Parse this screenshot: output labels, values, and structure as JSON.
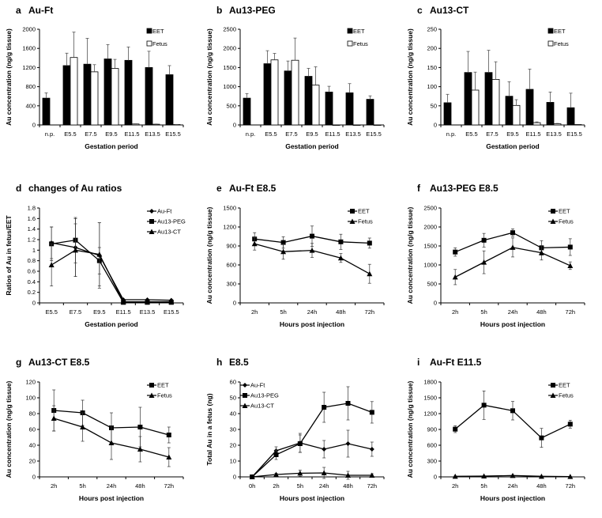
{
  "chart_data": [
    {
      "id": "a",
      "type": "bar",
      "letter": "a",
      "title": "Au-Ft",
      "xlabel": "Gestation period",
      "ylabel": "Au concentration (ng/g tissue)",
      "ylim": [
        0,
        2000
      ],
      "yticks": [
        "0",
        "400",
        "800",
        "1200",
        "1600",
        "2000"
      ],
      "legend_position": "top-right",
      "categories": [
        "n.p.",
        "E5.5",
        "E7.5",
        "E9.5",
        "E11.5",
        "E13.5",
        "E15.5"
      ],
      "series": [
        {
          "name": "EET",
          "fill": "#000000",
          "values": [
            560,
            1240,
            1270,
            1380,
            1350,
            1200,
            1050
          ],
          "errors": [
            110,
            260,
            540,
            300,
            280,
            340,
            190
          ]
        },
        {
          "name": "Fetus",
          "fill": "#ffffff",
          "values": [
            null,
            1410,
            1110,
            1180,
            20,
            15,
            8
          ],
          "errors": [
            null,
            530,
            150,
            190,
            5,
            5,
            3
          ]
        }
      ]
    },
    {
      "id": "b",
      "type": "bar",
      "letter": "b",
      "title": "Au13-PEG",
      "xlabel": "Gestation period",
      "ylabel": "Au concentration (ng/g tissue)",
      "ylim": [
        0,
        2500
      ],
      "yticks": [
        "0",
        "500",
        "1000",
        "1500",
        "2000",
        "2500"
      ],
      "legend_position": "top-right",
      "categories": [
        "n.p.",
        "E5.5",
        "E7.5",
        "E9.5",
        "E11.5",
        "E13.5",
        "E15.5"
      ],
      "series": [
        {
          "name": "EET",
          "fill": "#000000",
          "values": [
            700,
            1600,
            1410,
            1270,
            860,
            840,
            670
          ],
          "errors": [
            120,
            340,
            260,
            210,
            150,
            240,
            90
          ]
        },
        {
          "name": "Fetus",
          "fill": "#ffffff",
          "values": [
            null,
            1700,
            1690,
            1040,
            0,
            0,
            0
          ],
          "errors": [
            null,
            170,
            580,
            480,
            0,
            0,
            0
          ]
        }
      ]
    },
    {
      "id": "c",
      "type": "bar",
      "letter": "c",
      "title": "Au13-CT",
      "xlabel": "Gestation period",
      "ylabel": "Au concentration (ng/g tissue)",
      "ylim": [
        0,
        250
      ],
      "yticks": [
        "0",
        "50",
        "100",
        "150",
        "200",
        "250"
      ],
      "legend_position": "top-right",
      "categories": [
        "n.p.",
        "E5.5",
        "E7.5",
        "E9.5",
        "E11.5",
        "E13.5",
        "E15.5"
      ],
      "series": [
        {
          "name": "EET",
          "fill": "#000000",
          "values": [
            58,
            137,
            137,
            75,
            93,
            59,
            45
          ],
          "errors": [
            22,
            55,
            58,
            38,
            53,
            27,
            38
          ]
        },
        {
          "name": "Fetus",
          "fill": "#ffffff",
          "values": [
            null,
            91,
            119,
            51,
            6,
            3,
            1
          ],
          "errors": [
            null,
            47,
            46,
            15,
            2,
            1,
            0
          ]
        }
      ]
    },
    {
      "id": "d",
      "type": "line",
      "letter": "d",
      "title": "changes of Au ratios",
      "xlabel": "Gestation period",
      "ylabel": "Ratios of Au in fetus/EET",
      "ylim": [
        0,
        1.8
      ],
      "yticks": [
        "0",
        "0.2",
        "0.4",
        "0.6",
        "0.8",
        "1",
        "1.2",
        "1.4",
        "1.6",
        "1.8"
      ],
      "legend_position": "top-right",
      "categories": [
        "E5.5",
        "E7.5",
        "E9.5",
        "E11.5",
        "E13.5",
        "E15.5"
      ],
      "series": [
        {
          "name": "Au-Ft",
          "marker": "diamond",
          "values": [
            1.14,
            1.05,
            0.9,
            0.06,
            0.06,
            0.05
          ],
          "errors": [
            0.3,
            0.55,
            0.62,
            0,
            0,
            0
          ]
        },
        {
          "name": "Au13-PEG",
          "marker": "square",
          "values": [
            1.12,
            1.19,
            0.8,
            0.01,
            0.01,
            0.01
          ],
          "errors": [
            0.32,
            0.43,
            0.25,
            0,
            0,
            0
          ]
        },
        {
          "name": "Au13-CT",
          "marker": "triangle",
          "values": [
            0.72,
            1.0,
            0.92,
            0.02,
            0.02,
            0.02
          ],
          "errors": [
            0.4,
            0.5,
            0.6,
            0,
            0,
            0
          ]
        }
      ]
    },
    {
      "id": "e",
      "type": "line",
      "letter": "e",
      "title": "Au-Ft   E8.5",
      "xlabel": "Hours post injection",
      "ylabel": "Au concentration (ng/g tissue)",
      "ylim": [
        0,
        1500
      ],
      "yticks": [
        "0",
        "300",
        "600",
        "900",
        "1200",
        "1500"
      ],
      "legend_position": "top-right",
      "categories": [
        "2h",
        "5h",
        "24h",
        "48h",
        "72h"
      ],
      "series": [
        {
          "name": "EET",
          "marker": "square",
          "values": [
            1010,
            955,
            1055,
            965,
            945
          ],
          "errors": [
            100,
            90,
            160,
            120,
            80
          ]
        },
        {
          "name": "Fetus",
          "marker": "triangle",
          "values": [
            935,
            810,
            830,
            710,
            460
          ],
          "errors": [
            100,
            120,
            110,
            70,
            150
          ]
        }
      ]
    },
    {
      "id": "f",
      "type": "line",
      "letter": "f",
      "title": "Au13-PEG   E8.5",
      "xlabel": "Hours post injection",
      "ylabel": "Au concentration (ng/g tissue)",
      "ylim": [
        0,
        2500
      ],
      "yticks": [
        "0",
        "500",
        "1000",
        "1500",
        "2000",
        "2500"
      ],
      "legend_position": "top-right",
      "categories": [
        "2h",
        "5h",
        "24h",
        "48h",
        "72h"
      ],
      "series": [
        {
          "name": "EET",
          "marker": "square",
          "values": [
            1340,
            1650,
            1850,
            1450,
            1470
          ],
          "errors": [
            110,
            180,
            100,
            190,
            220
          ]
        },
        {
          "name": "Fetus",
          "marker": "triangle",
          "values": [
            680,
            1070,
            1460,
            1320,
            980
          ],
          "errors": [
            200,
            300,
            250,
            190,
            100
          ]
        }
      ]
    },
    {
      "id": "g",
      "type": "line",
      "letter": "g",
      "title": "Au13-CT   E8.5",
      "xlabel": "Hours post injection",
      "ylabel": "Au concentration (ng/g tissue)",
      "ylim": [
        0,
        120
      ],
      "yticks": [
        "0",
        "20",
        "40",
        "60",
        "80",
        "100",
        "120"
      ],
      "legend_position": "top-right",
      "categories": [
        "2h",
        "5h",
        "24h",
        "48h",
        "72h"
      ],
      "series": [
        {
          "name": "EET",
          "marker": "square",
          "values": [
            84,
            81,
            62,
            63,
            53
          ],
          "errors": [
            26,
            16,
            19,
            25,
            10
          ]
        },
        {
          "name": "Fetus",
          "marker": "triangle",
          "values": [
            74,
            63,
            43,
            35,
            25
          ],
          "errors": [
            16,
            18,
            21,
            16,
            12
          ]
        }
      ]
    },
    {
      "id": "h",
      "type": "line",
      "letter": "h",
      "title": "E8.5",
      "xlabel": "Hours post injection",
      "ylabel": "Total  Au in a fetus (ng)",
      "ylim": [
        0,
        60
      ],
      "yticks": [
        "0",
        "10",
        "20",
        "30",
        "40",
        "50",
        "60"
      ],
      "legend_position": "top-left",
      "categories": [
        "0h",
        "2h",
        "5h",
        "24h",
        "48h",
        "72h"
      ],
      "series": [
        {
          "name": "Au-Ft",
          "marker": "diamond",
          "values": [
            0,
            16.5,
            21.5,
            17.5,
            21,
            17.5
          ],
          "errors": [
            0,
            2.5,
            6,
            5.5,
            8.5,
            4.5
          ]
        },
        {
          "name": "Au13-PEG",
          "marker": "square",
          "values": [
            0,
            14,
            21,
            44,
            46.5,
            40.8
          ],
          "errors": [
            0,
            3,
            5.5,
            9.5,
            10.5,
            6.8
          ]
        },
        {
          "name": "Au13-CT",
          "marker": "triangle",
          "values": [
            0,
            1.5,
            2.3,
            2.5,
            1,
            1
          ],
          "errors": [
            0,
            0.8,
            2,
            3.5,
            2.5,
            1
          ]
        }
      ]
    },
    {
      "id": "i",
      "type": "line",
      "letter": "i",
      "title": "Au-Ft   E11.5",
      "xlabel": "Hours post injection",
      "ylabel": "Au concentration (ng/g tissue)",
      "ylim": [
        0,
        1800
      ],
      "yticks": [
        "0",
        "300",
        "600",
        "900",
        "1200",
        "1500",
        "1800"
      ],
      "legend_position": "top-right",
      "categories": [
        "2h",
        "5h",
        "24h",
        "48h",
        "72h"
      ],
      "series": [
        {
          "name": "EET",
          "marker": "square",
          "values": [
            905,
            1360,
            1255,
            740,
            1000
          ],
          "errors": [
            65,
            270,
            175,
            180,
            75
          ]
        },
        {
          "name": "Fetus",
          "marker": "triangle",
          "values": [
            10,
            15,
            25,
            10,
            5
          ],
          "errors": [
            5,
            5,
            8,
            5,
            3
          ]
        }
      ]
    }
  ]
}
